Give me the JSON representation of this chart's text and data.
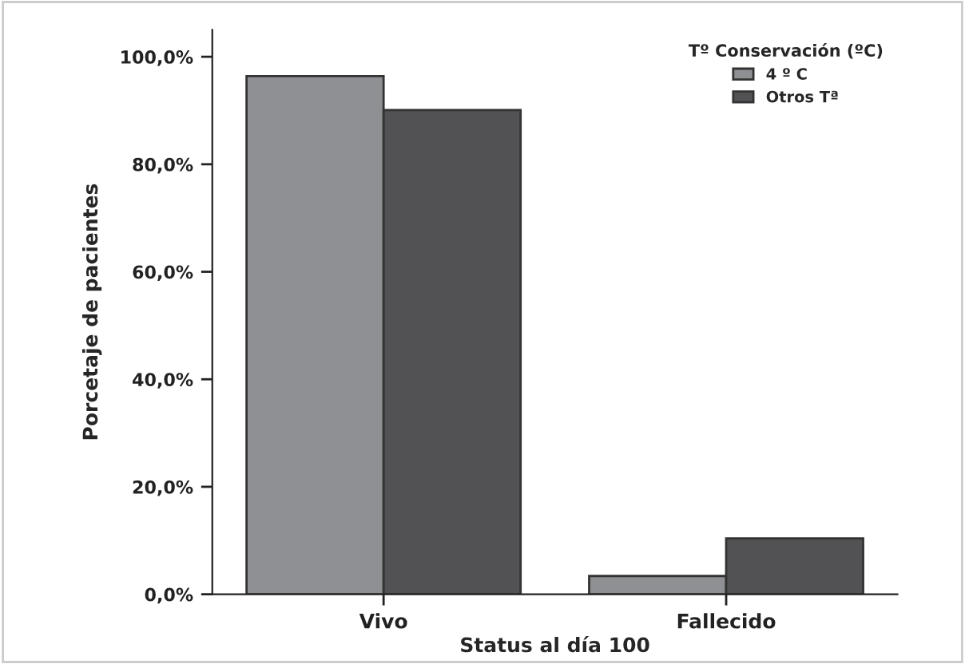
{
  "chart_data": {
    "type": "bar",
    "xlabel": "Status al día 100",
    "ylabel": "Porcetaje de pacientes",
    "legend_title": "Tº Conservación (ºC)",
    "categories": [
      "Vivo",
      "Fallecido"
    ],
    "series": [
      {
        "name": "4 º C",
        "color": "#8f9093",
        "values": [
          96.4,
          3.4
        ]
      },
      {
        "name": "Otros Tª",
        "color": "#525254",
        "values": [
          90.1,
          10.4
        ]
      }
    ],
    "ylim": [
      0,
      105
    ],
    "yticks": [
      {
        "value": 0,
        "label": "0,0%"
      },
      {
        "value": 20,
        "label": "20,0%"
      },
      {
        "value": 40,
        "label": "40,0%"
      },
      {
        "value": 60,
        "label": "60,0%"
      },
      {
        "value": 80,
        "label": "80,0%"
      },
      {
        "value": 100,
        "label": "100,0%"
      }
    ],
    "grid": false,
    "legend": "top right"
  }
}
